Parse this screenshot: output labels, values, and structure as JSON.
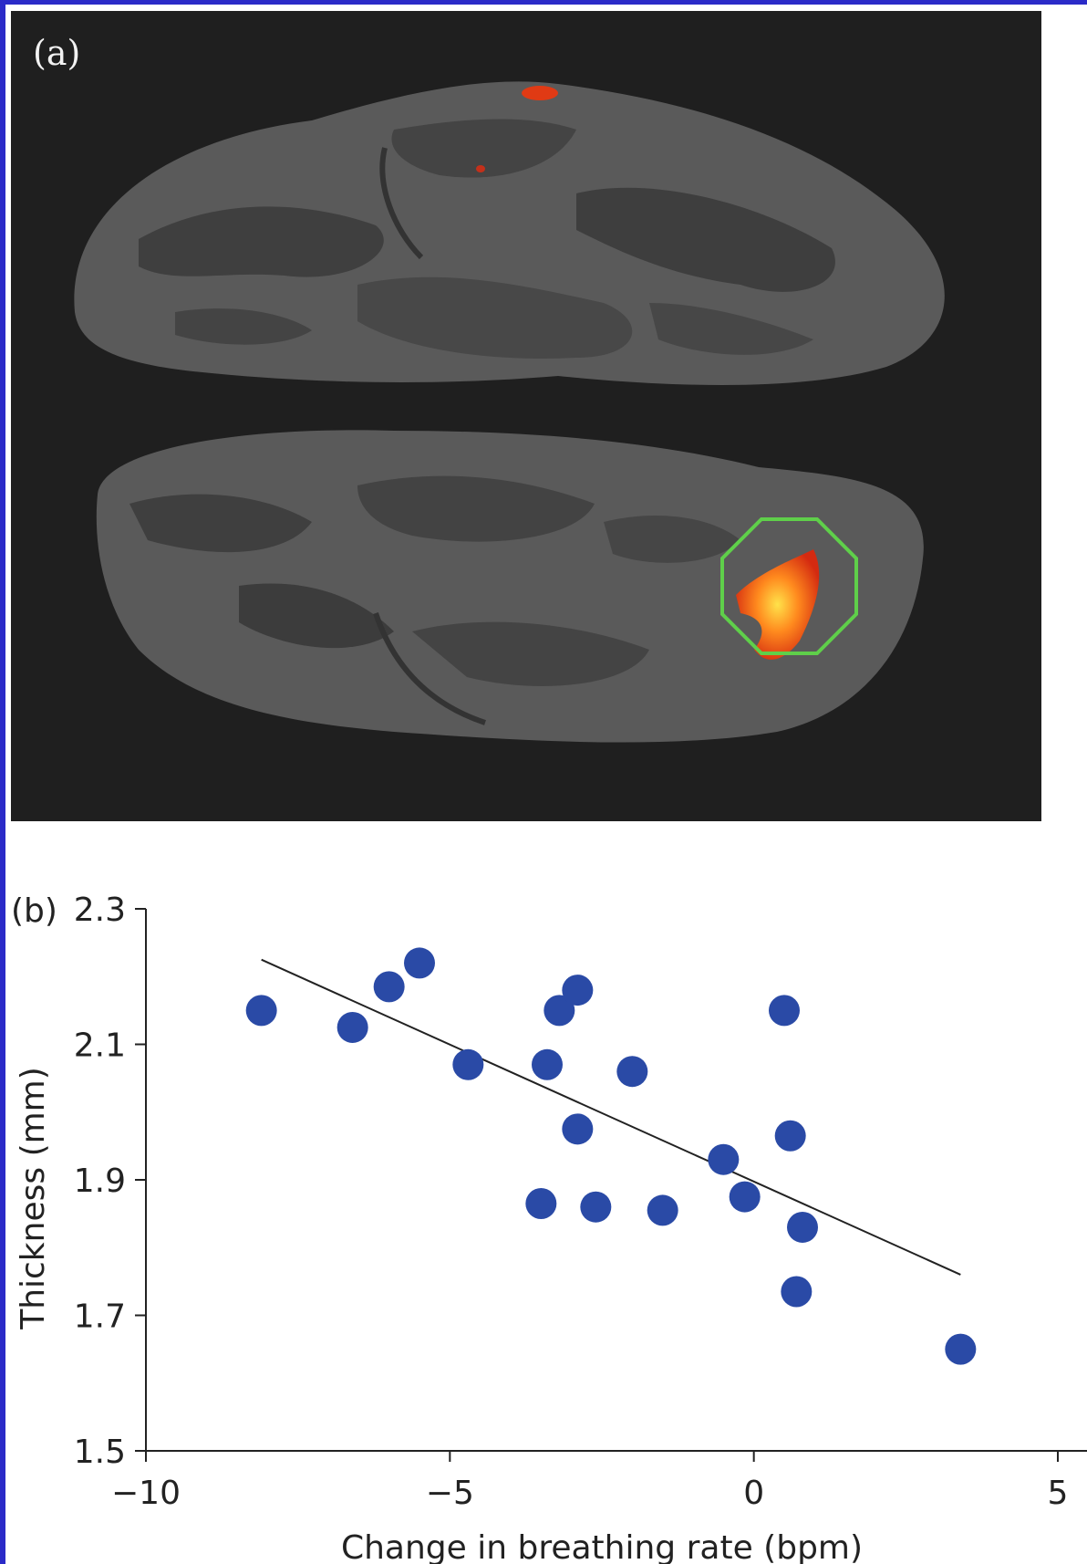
{
  "panel_a": {
    "label": "(a)"
  },
  "chart_data": {
    "type": "scatter",
    "panel_label": "(b)",
    "xlabel": "Change in breathing rate (bpm)",
    "ylabel": "Thickness (mm)",
    "xlim": [
      -10,
      5
    ],
    "ylim": [
      1.5,
      2.3
    ],
    "x_ticks": [
      -10,
      -5,
      0,
      5
    ],
    "x_tick_labels": [
      "−10",
      "−5",
      "0",
      "5"
    ],
    "y_ticks": [
      1.5,
      1.7,
      1.9,
      2.1,
      2.3
    ],
    "y_tick_labels": [
      "1.5",
      "1.7",
      "1.9",
      "2.1",
      "2.3"
    ],
    "grid": false,
    "series": [
      {
        "color": "#2a4aa6",
        "points": [
          {
            "x": -8.1,
            "y": 2.15
          },
          {
            "x": -6.6,
            "y": 2.125
          },
          {
            "x": -6.0,
            "y": 2.185
          },
          {
            "x": -5.5,
            "y": 2.22
          },
          {
            "x": -4.7,
            "y": 2.07
          },
          {
            "x": -3.4,
            "y": 2.07
          },
          {
            "x": -3.2,
            "y": 2.15
          },
          {
            "x": -2.9,
            "y": 2.18
          },
          {
            "x": -2.9,
            "y": 1.975
          },
          {
            "x": -2.0,
            "y": 2.06
          },
          {
            "x": -3.5,
            "y": 1.865
          },
          {
            "x": -2.6,
            "y": 1.86
          },
          {
            "x": -1.5,
            "y": 1.855
          },
          {
            "x": -0.5,
            "y": 1.93
          },
          {
            "x": -0.15,
            "y": 1.875
          },
          {
            "x": 0.5,
            "y": 2.15
          },
          {
            "x": 0.6,
            "y": 1.965
          },
          {
            "x": 0.8,
            "y": 1.83
          },
          {
            "x": 0.7,
            "y": 1.735
          },
          {
            "x": 3.4,
            "y": 1.65
          }
        ]
      }
    ],
    "trendline": {
      "x": [
        -8.1,
        3.4
      ],
      "y": [
        2.225,
        1.76
      ],
      "color": "#222222"
    }
  }
}
